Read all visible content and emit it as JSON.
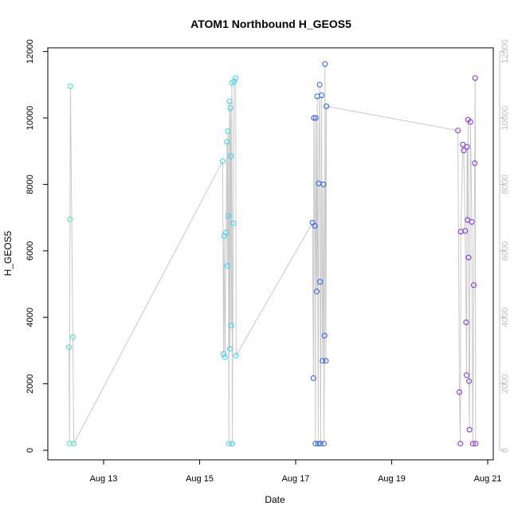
{
  "chart_data": {
    "type": "scatter",
    "title": "ATOM1 Northbound H_GEOS5",
    "xlabel": "Date",
    "ylabel": "H_GEOS5",
    "xlim": [
      12.2,
      21.4
    ],
    "ylim": [
      0,
      12000
    ],
    "x_ticks": [
      {
        "value": 13,
        "label": "Aug 13"
      },
      {
        "value": 15,
        "label": "Aug 15"
      },
      {
        "value": 17,
        "label": "Aug 17"
      },
      {
        "value": 19,
        "label": "Aug 19"
      },
      {
        "value": 21,
        "label": "Aug 21"
      }
    ],
    "y_ticks": [
      {
        "value": 0,
        "label": "0"
      },
      {
        "value": 2000,
        "label": "2000"
      },
      {
        "value": 4000,
        "label": "4000"
      },
      {
        "value": 6000,
        "label": "6000"
      },
      {
        "value": 8000,
        "label": "8000"
      },
      {
        "value": 10000,
        "label": "10000"
      },
      {
        "value": 12000,
        "label": "12000"
      }
    ],
    "right_axis": true,
    "right_axis_color": "#bdbdbd",
    "line_color": "#c8c8c8",
    "point_style": "open-circle",
    "grid": false,
    "series": [
      {
        "color": "#3ee8b6",
        "x": [
          12.28,
          12.29,
          12.3,
          12.31,
          12.36,
          12.38
        ],
        "y": [
          3100,
          200,
          6950,
          10950,
          3400,
          200
        ]
      },
      {
        "color": "#2ed6ef",
        "x": [
          15.48,
          15.5,
          15.51,
          15.53,
          15.55,
          15.57,
          15.58,
          15.59,
          15.6,
          15.61,
          15.62,
          15.63,
          15.64,
          15.65,
          15.66,
          15.67,
          15.68,
          15.7,
          15.72,
          15.75,
          15.76
        ],
        "y": [
          8700,
          2900,
          6450,
          2800,
          6550,
          9280,
          5550,
          9600,
          7050,
          200,
          10500,
          3050,
          10300,
          8850,
          3750,
          11050,
          200,
          6830,
          11100,
          11200,
          2850
        ]
      },
      {
        "color": "#2b5cf2",
        "x": [
          17.35,
          17.37,
          17.38,
          17.4,
          17.41,
          17.42,
          17.44,
          17.45,
          17.47,
          17.48,
          17.5,
          17.51,
          17.52,
          17.54,
          17.56,
          17.58,
          17.59,
          17.6,
          17.61,
          17.63,
          17.64
        ],
        "y": [
          6850,
          2170,
          10000,
          6750,
          200,
          10000,
          4780,
          10650,
          200,
          8030,
          11000,
          5070,
          200,
          10680,
          2690,
          8000,
          200,
          3450,
          11620,
          2690,
          10350
        ]
      },
      {
        "color": "#7a2cf0",
        "x": [
          20.38,
          20.41,
          20.43,
          20.44,
          20.48,
          20.5,
          20.53,
          20.55,
          20.56,
          20.57,
          20.58,
          20.59,
          20.6,
          20.61,
          20.62,
          20.64,
          20.67,
          20.69,
          20.71,
          20.73,
          20.74,
          20.75
        ],
        "y": [
          9620,
          1750,
          200,
          6580,
          9200,
          9020,
          6600,
          3850,
          2260,
          9130,
          6930,
          9950,
          5800,
          2080,
          620,
          9880,
          6870,
          200,
          4970,
          8640,
          11200,
          200
        ]
      }
    ]
  }
}
